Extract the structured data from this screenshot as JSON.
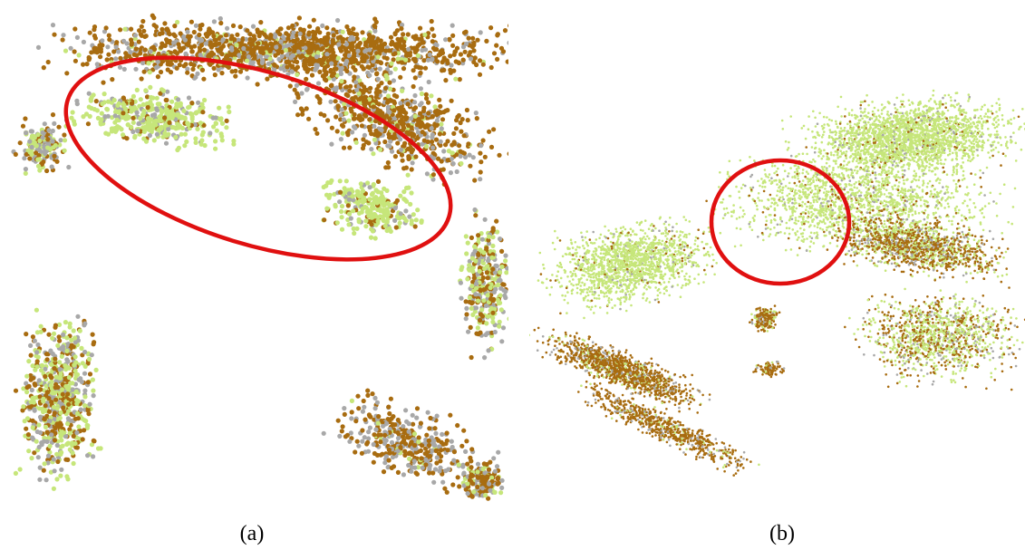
{
  "figure": {
    "panels": [
      {
        "id": "a",
        "caption": "(a)"
      },
      {
        "id": "b",
        "caption": "(b)"
      }
    ],
    "colors": {
      "brown": "#a86c10",
      "gray": "#a8a8a8",
      "green": "#c6e67a",
      "highlight": "#e01010"
    }
  }
}
